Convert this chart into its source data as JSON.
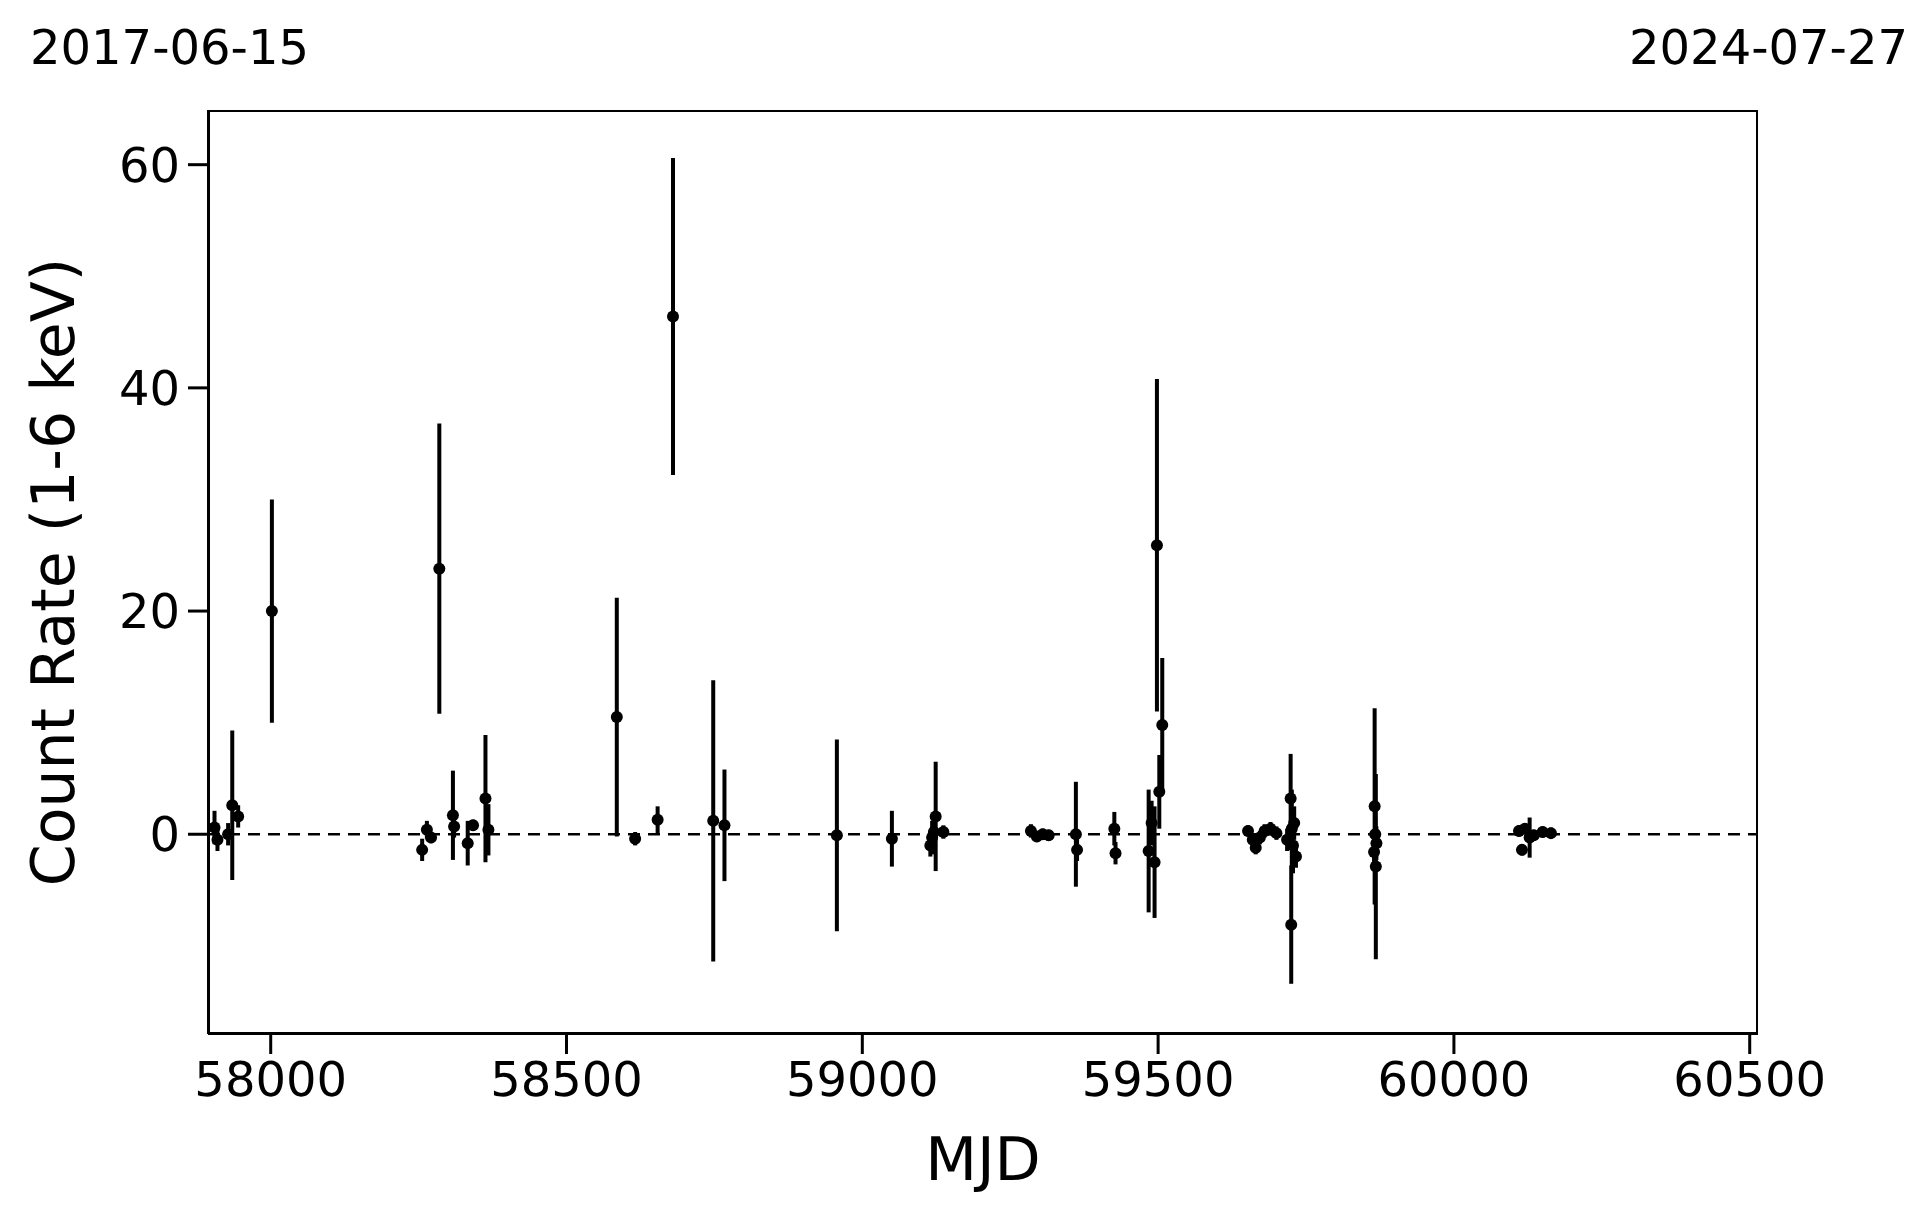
{
  "chart_data": {
    "type": "scatter",
    "xlabel": "MJD",
    "ylabel": "Count Rate (1-6 keV)",
    "annotations": [
      "2017-06-15",
      "2024-07-27"
    ],
    "xlim": [
      57894,
      60514
    ],
    "xticks": [
      58000,
      58500,
      59000,
      59500,
      60000,
      60500
    ],
    "ylim": [
      -17.9,
      64.9
    ],
    "yticks": [
      0,
      20,
      40,
      60
    ],
    "marker": "circle",
    "ref_lines": [
      {
        "axis": "y",
        "value": 0,
        "label": null,
        "color": "#000000",
        "line_style": "dashed"
      }
    ],
    "series": [
      {
        "color": "#000000",
        "x": [
          57905,
          57910,
          57928,
          57935,
          57945,
          58002,
          58256,
          58264,
          58271,
          58285,
          58308,
          58310,
          58333,
          58342,
          58363,
          58368,
          58585,
          58616,
          58654,
          58680,
          58748,
          58767,
          58957,
          59050,
          59115,
          59118,
          59121,
          59124,
          59137,
          59285,
          59295,
          59305,
          59315,
          59361,
          59363,
          59426,
          59428,
          59484,
          59489,
          59494,
          59498,
          59502,
          59507,
          59652,
          59660,
          59665,
          59672,
          59680,
          59690,
          59700,
          59718,
          59724,
          59725,
          59726,
          59728,
          59730,
          59733,
          59865,
          59866,
          59867,
          59868,
          59869,
          60110,
          60115,
          60120,
          60128,
          60135,
          60150,
          60164
        ],
        "values": [
          0.6,
          -0.5,
          0,
          2.6,
          1.6,
          20.0,
          -1.4,
          0.4,
          -0.3,
          23.8,
          1.7,
          0.7,
          -0.8,
          0.8,
          3.2,
          0.4,
          10.5,
          -0.4,
          1.3,
          46.4,
          1.2,
          0.8,
          -0.1,
          -0.4,
          -1.0,
          -0.3,
          0.2,
          1.6,
          0.2,
          0.3,
          -0.2,
          0,
          -0.1,
          0,
          -1.4,
          0.5,
          -1.7,
          -1.5,
          1.0,
          -2.5,
          25.9,
          3.8,
          9.8,
          0.3,
          -0.5,
          -1.2,
          -0.3,
          0.3,
          0.5,
          0.1,
          -0.5,
          3.2,
          -8.1,
          0.5,
          -1,
          1.0,
          -2,
          -1.6,
          2.5,
          0,
          -2.9,
          -0.8,
          0.3,
          -1.4,
          0.5,
          -0.3,
          -0.1,
          0.2,
          0.1
        ],
        "errors": [
          1.5,
          1,
          1,
          6.7,
          1,
          10,
          1,
          0.8,
          0.5,
          13,
          4,
          1,
          2,
          0.5,
          5.7,
          2.3,
          10.7,
          0.6,
          1.2,
          14.2,
          12.6,
          5,
          8.6,
          2.5,
          1,
          1.5,
          1,
          4.9,
          0.6,
          0.6,
          0.5,
          0.5,
          0.5,
          4.7,
          1,
          1.5,
          1,
          5.5,
          2,
          5,
          14.9,
          3.3,
          6,
          0.5,
          0.6,
          0.6,
          0.6,
          0.6,
          0.6,
          0.6,
          1,
          4,
          5.3,
          3.5,
          2.5,
          1.5,
          1,
          1,
          8.8,
          1.5,
          8.3,
          1.5,
          0.5,
          0.5,
          0.5,
          1.8,
          0.5,
          0.5,
          0.5
        ]
      }
    ]
  }
}
